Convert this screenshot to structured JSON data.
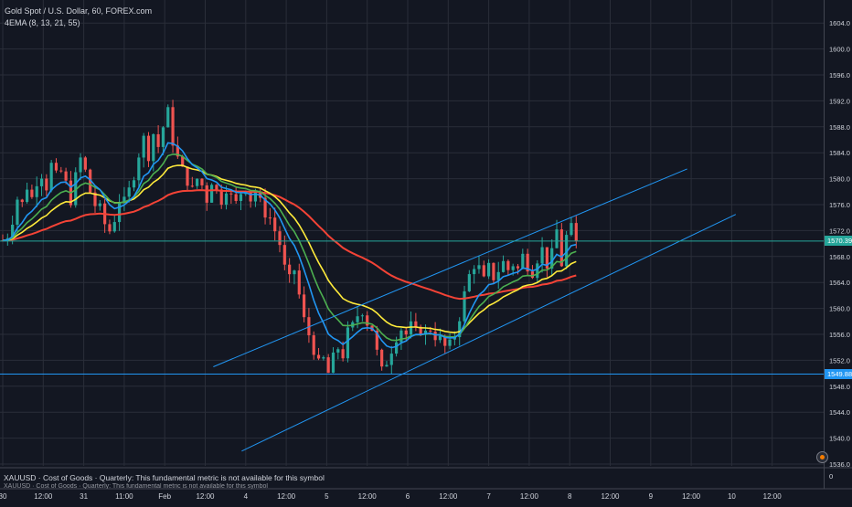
{
  "legend": {
    "symbol_line": "Gold Spot / U.S. Dollar, 60, FOREX.com",
    "indicator_line": "4EMA (8, 13, 21, 55)"
  },
  "bottom_panel": {
    "text": "XAUUSD · Cost of Goods · Quarterly: This fundamental metric is not available for this symbol",
    "text2": "XAUUSD · Cost of Goods · Quarterly: This fundamental metric is not available for this symbol",
    "scale_label": "0"
  },
  "price_tags": {
    "current": "1570.39",
    "horizontal_level": "1549.88"
  },
  "colors": {
    "background": "#131722",
    "up": "#26a69a",
    "down": "#ef5350",
    "ema8": "#2196f3",
    "ema13": "#4caf50",
    "ema21": "#ffeb3b",
    "ema55": "#f44336",
    "channel": "#2196f3"
  },
  "chart_data": {
    "type": "candlestick",
    "symbol": "XAUUSD",
    "timeframe": "60",
    "y_axis": {
      "min": 1536,
      "max": 1606,
      "ticks": [
        1536,
        1540,
        1544,
        1548,
        1552,
        1556,
        1560,
        1564,
        1568,
        1572,
        1576,
        1580,
        1584,
        1588,
        1592,
        1596,
        1600,
        1604
      ]
    },
    "x_axis": {
      "ticks": [
        "30",
        "12:00",
        "31",
        "11:00",
        "Feb",
        "12:00",
        "4",
        "12:00",
        "5",
        "12:00",
        "6",
        "12:00",
        "7",
        "12:00",
        "8",
        "12:00",
        "9",
        "12:00",
        "10",
        "12:00"
      ]
    },
    "x_range": [
      0,
      100
    ],
    "x_tick_positions": [
      0,
      5,
      10,
      15,
      20,
      25,
      30,
      35,
      40,
      45,
      50,
      55,
      60,
      65,
      70,
      75,
      80,
      85,
      90,
      95
    ],
    "last_price": 1570.39,
    "horizontal_level": 1549.88,
    "close_path": [
      [
        0,
        1570.5
      ],
      [
        0.6,
        1571.5
      ],
      [
        1.2,
        1574
      ],
      [
        1.8,
        1577
      ],
      [
        2.4,
        1576
      ],
      [
        3.0,
        1579
      ],
      [
        3.6,
        1577
      ],
      [
        4.2,
        1580
      ],
      [
        4.8,
        1581
      ],
      [
        5.4,
        1579
      ],
      [
        6.0,
        1582
      ],
      [
        6.6,
        1580
      ],
      [
        7.2,
        1581
      ],
      [
        7.8,
        1579
      ],
      [
        8.4,
        1577
      ],
      [
        9.0,
        1580
      ],
      [
        9.6,
        1583
      ],
      [
        10.2,
        1581
      ],
      [
        10.8,
        1578
      ],
      [
        11.4,
        1576
      ],
      [
        12.0,
        1575
      ],
      [
        12.6,
        1573
      ],
      [
        13.2,
        1572
      ],
      [
        13.8,
        1574
      ],
      [
        14.4,
        1577
      ],
      [
        15.0,
        1576
      ],
      [
        15.6,
        1578
      ],
      [
        16.2,
        1581
      ],
      [
        16.8,
        1584
      ],
      [
        17.4,
        1586
      ],
      [
        18.0,
        1584
      ],
      [
        18.6,
        1587
      ],
      [
        19.2,
        1585
      ],
      [
        19.8,
        1588
      ],
      [
        20.4,
        1590
      ],
      [
        21.0,
        1586
      ],
      [
        21.6,
        1583
      ],
      [
        22.2,
        1581
      ],
      [
        22.8,
        1580
      ],
      [
        23.4,
        1578
      ],
      [
        24.0,
        1580
      ],
      [
        24.6,
        1579
      ],
      [
        25.2,
        1577
      ],
      [
        25.8,
        1580
      ],
      [
        26.4,
        1578
      ],
      [
        27.0,
        1577
      ],
      [
        27.6,
        1579
      ],
      [
        28.2,
        1577
      ],
      [
        28.8,
        1576
      ],
      [
        29.4,
        1578
      ],
      [
        30.0,
        1579
      ],
      [
        30.6,
        1577
      ],
      [
        31.2,
        1578
      ],
      [
        31.8,
        1576
      ],
      [
        32.4,
        1575
      ],
      [
        33.0,
        1574
      ],
      [
        33.6,
        1572
      ],
      [
        34.2,
        1570
      ],
      [
        34.8,
        1566
      ],
      [
        35.4,
        1564
      ],
      [
        36.0,
        1566
      ],
      [
        36.6,
        1562
      ],
      [
        37.2,
        1558
      ],
      [
        37.8,
        1556
      ],
      [
        38.4,
        1554
      ],
      [
        39.0,
        1551
      ],
      [
        39.6,
        1552
      ],
      [
        40.2,
        1550
      ],
      [
        40.8,
        1552
      ],
      [
        41.4,
        1554
      ],
      [
        42.0,
        1553
      ],
      [
        42.6,
        1556
      ],
      [
        43.2,
        1557
      ],
      [
        43.8,
        1559
      ],
      [
        44.4,
        1560
      ],
      [
        45.0,
        1558
      ],
      [
        45.6,
        1557
      ],
      [
        46.2,
        1553
      ],
      [
        46.8,
        1550
      ],
      [
        47.4,
        1552
      ],
      [
        48.0,
        1554
      ],
      [
        48.6,
        1556
      ],
      [
        49.2,
        1557
      ],
      [
        49.8,
        1556
      ],
      [
        50.4,
        1557
      ],
      [
        51.0,
        1556
      ],
      [
        51.6,
        1557
      ],
      [
        52.2,
        1556
      ],
      [
        52.8,
        1557
      ],
      [
        53.4,
        1556
      ],
      [
        54.0,
        1555
      ],
      [
        54.6,
        1554
      ],
      [
        55.2,
        1554
      ],
      [
        55.8,
        1556
      ],
      [
        56.4,
        1559
      ],
      [
        57.0,
        1562
      ],
      [
        57.6,
        1565
      ],
      [
        58.2,
        1567
      ],
      [
        58.8,
        1566
      ],
      [
        59.4,
        1564
      ],
      [
        60.0,
        1566
      ],
      [
        60.6,
        1565
      ],
      [
        61.2,
        1566
      ],
      [
        61.8,
        1567
      ],
      [
        62.4,
        1566
      ],
      [
        63.0,
        1567
      ],
      [
        63.6,
        1566
      ],
      [
        64.2,
        1568
      ],
      [
        64.8,
        1567
      ],
      [
        65.4,
        1566
      ],
      [
        66.0,
        1568
      ],
      [
        66.6,
        1569
      ],
      [
        67.2,
        1567
      ],
      [
        67.8,
        1568
      ],
      [
        68.4,
        1572
      ],
      [
        69.0,
        1567
      ],
      [
        69.6,
        1571
      ],
      [
        70.2,
        1572
      ],
      [
        70.8,
        1570.39
      ]
    ],
    "ema_lengths": [
      8,
      13,
      21,
      55
    ],
    "ema_colors": [
      "#2196f3",
      "#4caf50",
      "#ffeb3b",
      "#f44336"
    ],
    "channel_upper": {
      "from": [
        26,
        1551
      ],
      "to": [
        84.5,
        1581.5
      ]
    },
    "channel_lower": {
      "from": [
        29.5,
        1538
      ],
      "to": [
        90.5,
        1574.5
      ]
    }
  }
}
